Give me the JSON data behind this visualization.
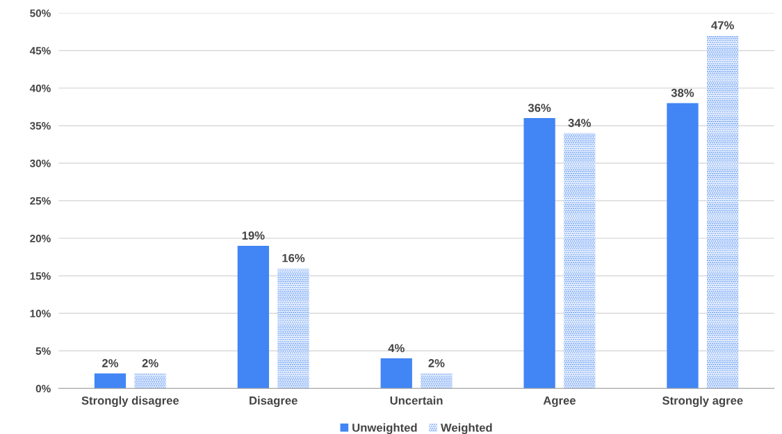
{
  "chart_data": {
    "type": "bar",
    "categories": [
      "Strongly disagree",
      "Disagree",
      "Uncertain",
      "Agree",
      "Strongly agree"
    ],
    "series": [
      {
        "name": "Unweighted",
        "color": "#4285f4",
        "values": [
          2,
          19,
          4,
          36,
          38
        ],
        "value_labels": [
          "2%",
          "19%",
          "4%",
          "36%",
          "38%"
        ]
      },
      {
        "name": "Weighted",
        "color": "#4285f4",
        "values": [
          2,
          16,
          2,
          34,
          47
        ],
        "value_labels": [
          "2%",
          "16%",
          "2%",
          "34%",
          "47%"
        ]
      }
    ],
    "ylim": [
      0,
      50
    ],
    "yticks": [
      {
        "value": 0,
        "label": "0%"
      },
      {
        "value": 5,
        "label": "5%"
      },
      {
        "value": 10,
        "label": "10%"
      },
      {
        "value": 15,
        "label": "15%"
      },
      {
        "value": 20,
        "label": "20%"
      },
      {
        "value": 25,
        "label": "25%"
      },
      {
        "value": 30,
        "label": "30%"
      },
      {
        "value": 35,
        "label": "35%"
      },
      {
        "value": 40,
        "label": "40%"
      },
      {
        "value": 45,
        "label": "45%"
      },
      {
        "value": 50,
        "label": "50%"
      }
    ],
    "grid": "y",
    "legend": "bottom"
  }
}
